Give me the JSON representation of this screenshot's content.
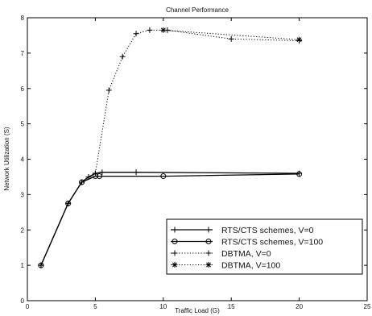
{
  "chart_data": {
    "type": "line",
    "title": "Channel Performance",
    "xlabel": "Traffic Load (G)",
    "ylabel": "Network Utilization (S)",
    "xlim": [
      0,
      25
    ],
    "ylim": [
      0,
      8
    ],
    "x_ticks": [
      "0",
      "5",
      "10",
      "15",
      "20",
      "25"
    ],
    "y_ticks": [
      "0",
      "1",
      "2",
      "3",
      "4",
      "5",
      "6",
      "7",
      "8"
    ],
    "legend_position": "bottom-right",
    "grid": false,
    "series": [
      {
        "name": "RTS/CTS schemes, V=0",
        "line": "solid",
        "marker": "plus",
        "x": [
          1,
          3,
          4,
          4.5,
          5,
          5.5,
          8,
          20
        ],
        "y": [
          1.0,
          2.75,
          3.35,
          3.5,
          3.6,
          3.63,
          3.63,
          3.6
        ]
      },
      {
        "name": "RTS/CTS schemes, V=100",
        "line": "solid",
        "marker": "circle",
        "x": [
          1,
          3,
          4,
          5,
          5.3,
          10,
          20
        ],
        "y": [
          1.0,
          2.75,
          3.35,
          3.52,
          3.52,
          3.52,
          3.58
        ]
      },
      {
        "name": "DBTMA, V=0",
        "line": "dotted",
        "marker": "plus",
        "x": [
          1,
          3,
          4,
          5,
          6,
          7,
          8,
          9,
          10.3,
          15,
          20
        ],
        "y": [
          1.0,
          2.75,
          3.35,
          3.6,
          5.95,
          6.9,
          7.55,
          7.65,
          7.65,
          7.4,
          7.35
        ]
      },
      {
        "name": "DBTMA, V=100",
        "line": "dotted",
        "marker": "star",
        "x": [
          10,
          20
        ],
        "y": [
          7.65,
          7.38
        ]
      }
    ]
  }
}
